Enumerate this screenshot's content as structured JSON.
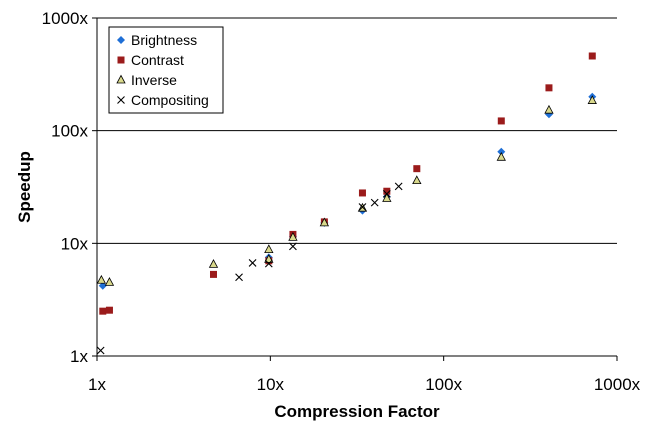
{
  "chart_data": {
    "type": "scatter",
    "title": "",
    "xlabel": "Compression Factor",
    "ylabel": "Speedup",
    "x_scale": "log",
    "y_scale": "log",
    "xlim": [
      1,
      1000
    ],
    "ylim": [
      1,
      1000
    ],
    "x_ticks": [
      "1x",
      "10x",
      "100x",
      "1000x"
    ],
    "y_ticks": [
      "1x",
      "10x",
      "100x",
      "1000x"
    ],
    "grid": "horizontal major lines",
    "legend_position": "top-left",
    "series": [
      {
        "name": "Brightness",
        "color": "#1f6fd6",
        "marker": "diamond",
        "points": [
          [
            1.08,
            4.2
          ],
          [
            9.8,
            7.5
          ],
          [
            13.5,
            11.5
          ],
          [
            20.5,
            15.2
          ],
          [
            34,
            19.5
          ],
          [
            47,
            26
          ],
          [
            215,
            65
          ],
          [
            405,
            140
          ],
          [
            720,
            200
          ]
        ]
      },
      {
        "name": "Contrast",
        "color": "#9b1b1b",
        "marker": "square",
        "points": [
          [
            1.08,
            2.5
          ],
          [
            1.18,
            2.55
          ],
          [
            4.7,
            5.3
          ],
          [
            9.8,
            7.0
          ],
          [
            13.5,
            12.0
          ],
          [
            20.5,
            15.5
          ],
          [
            34,
            28
          ],
          [
            47,
            29
          ],
          [
            70,
            46
          ],
          [
            215,
            122
          ],
          [
            405,
            240
          ],
          [
            720,
            460
          ]
        ]
      },
      {
        "name": "Inverse",
        "color": "#d9d98c",
        "marker": "triangle",
        "points": [
          [
            1.06,
            4.7
          ],
          [
            1.18,
            4.5
          ],
          [
            4.7,
            6.5
          ],
          [
            9.8,
            8.8
          ],
          [
            9.8,
            7.2
          ],
          [
            13.5,
            11.3
          ],
          [
            20.5,
            15.2
          ],
          [
            34,
            20.5
          ],
          [
            47,
            25
          ],
          [
            70,
            36
          ],
          [
            215,
            58
          ],
          [
            405,
            152
          ],
          [
            720,
            185
          ]
        ]
      },
      {
        "name": "Compositing",
        "color": "#000000",
        "marker": "x",
        "points": [
          [
            1.05,
            1.12
          ],
          [
            6.6,
            5.0
          ],
          [
            7.9,
            6.7
          ],
          [
            9.8,
            6.6
          ],
          [
            13.5,
            9.4
          ],
          [
            34,
            21
          ],
          [
            40,
            23
          ],
          [
            47,
            27.5
          ],
          [
            55,
            32
          ]
        ]
      }
    ]
  }
}
